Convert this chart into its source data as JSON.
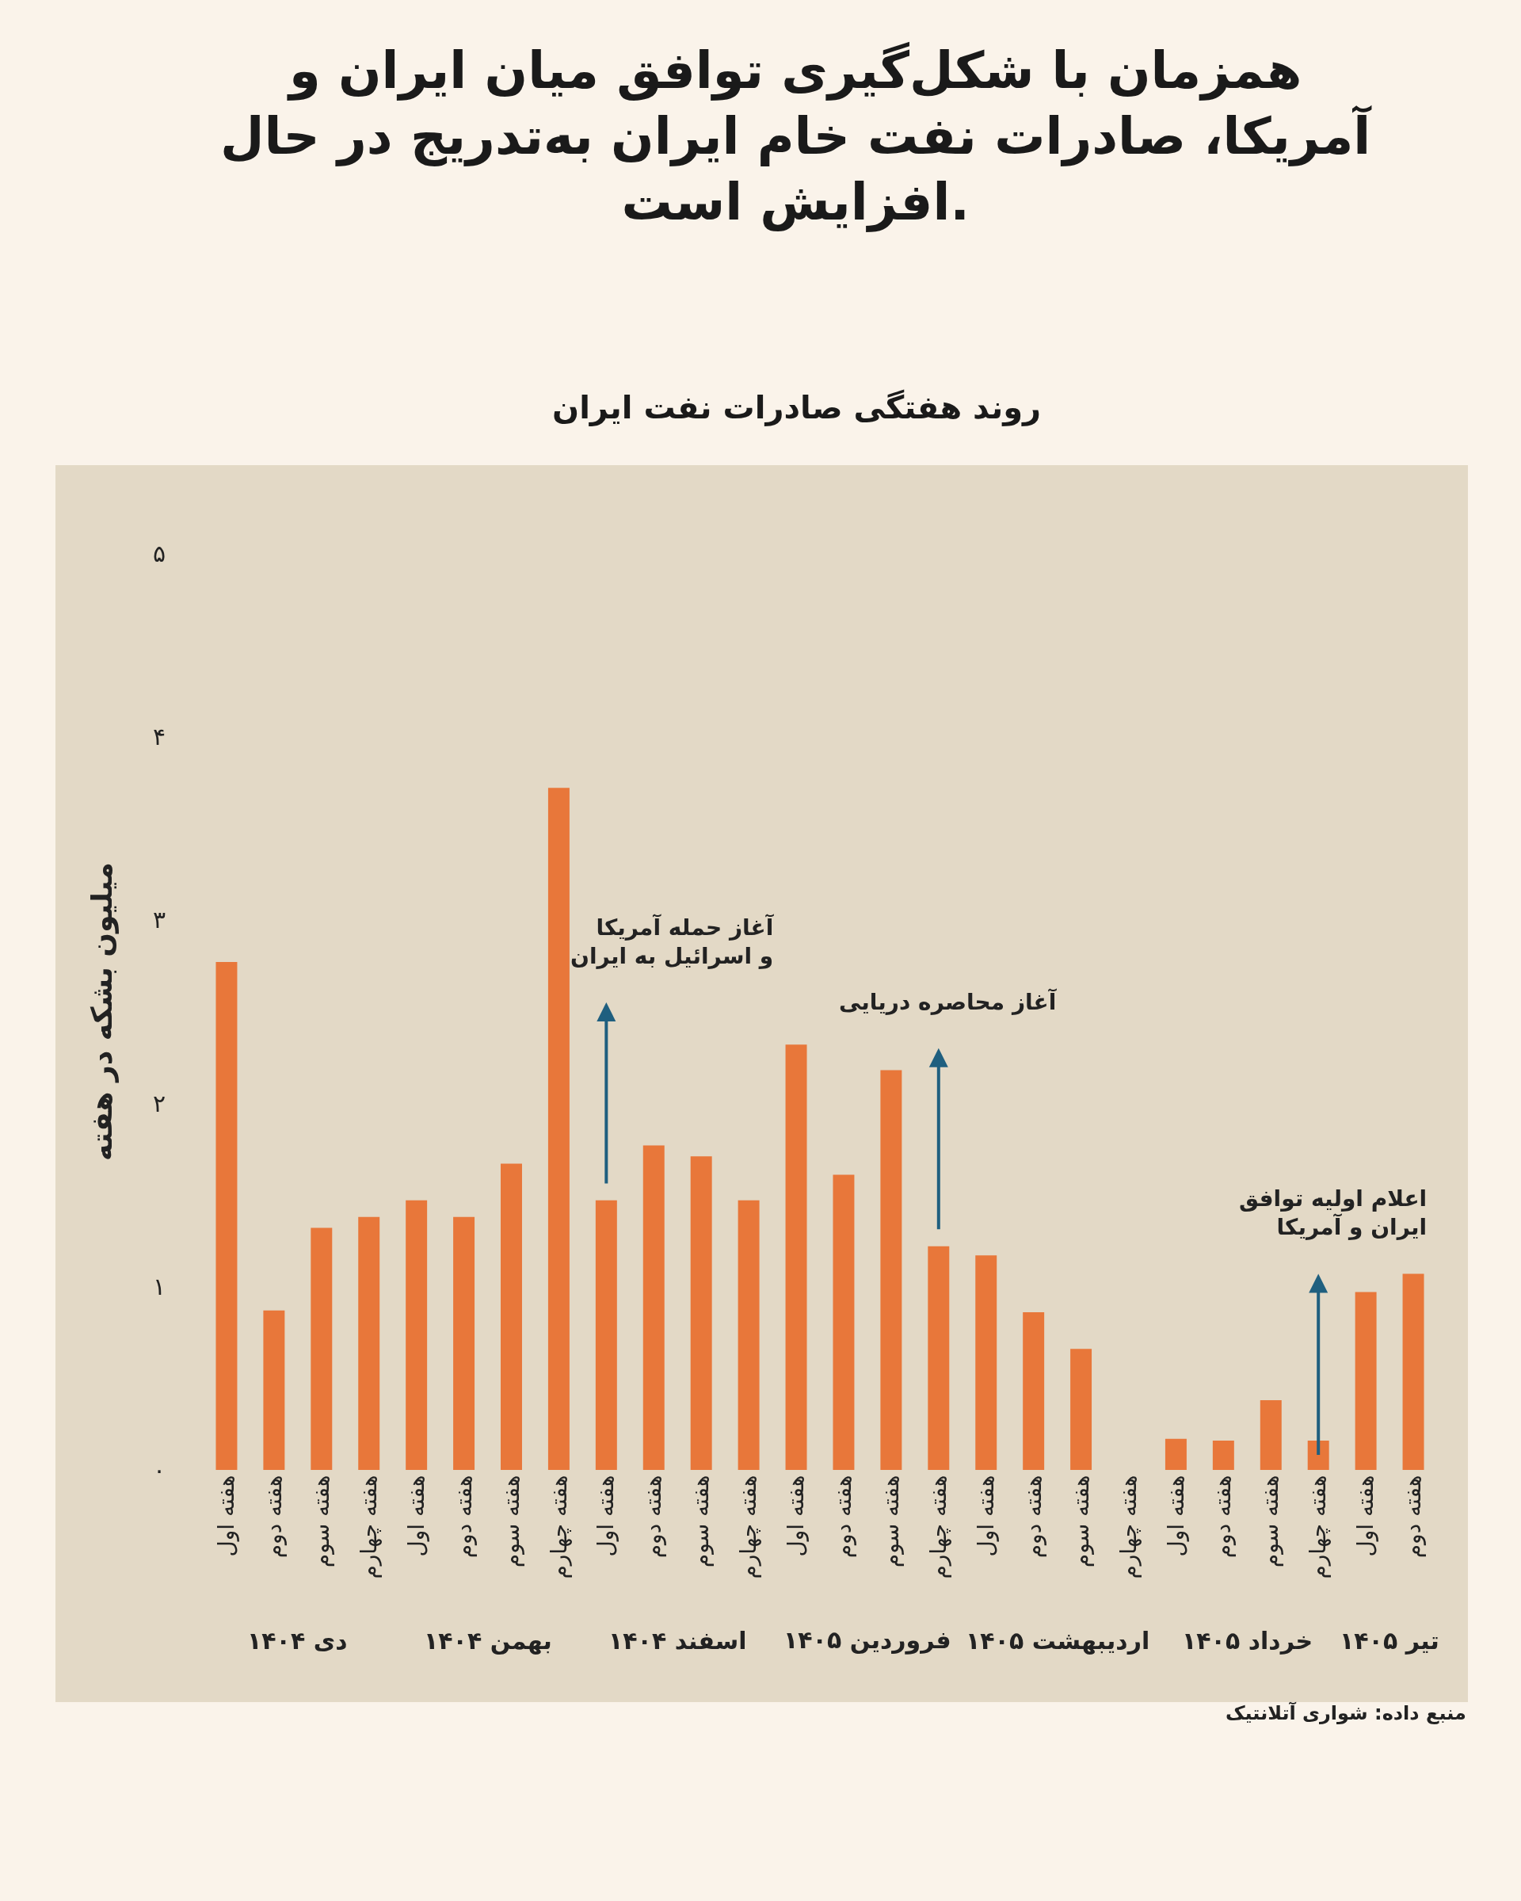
{
  "chart_data": {
    "type": "bar",
    "title": "همزمان با شکل‌گیری توافق میان ایران و آمریکا، صادرات نفت خام ایران به‌تدریج در حال افزایش است.",
    "subtitle": "روند هفتگی صادرات نفت ایران",
    "ylabel": "میلیون بشکه در هفته",
    "categories": [
      "هفته اول",
      "هفته دوم",
      "هفته سوم",
      "هفته چهارم",
      "هفته اول",
      "هفته دوم",
      "هفته سوم",
      "هفته چهارم",
      "هفته اول",
      "هفته دوم",
      "هفته سوم",
      "هفته چهارم",
      "هفته اول",
      "هفته دوم",
      "هفته سوم",
      "هفته چهارم",
      "هفته اول",
      "هفته دوم",
      "هفته سوم",
      "هفته چهارم",
      "هفته اول",
      "هفته دوم",
      "هفته سوم",
      "هفته چهارم",
      "هفته اول",
      "هفته دوم"
    ],
    "values": [
      2.77,
      0.87,
      1.32,
      1.38,
      1.47,
      1.38,
      1.67,
      3.72,
      1.47,
      1.77,
      1.71,
      1.47,
      2.32,
      1.61,
      2.18,
      1.22,
      1.17,
      0.86,
      0.66,
      0,
      0.17,
      0.16,
      0.38,
      0.16,
      0.97,
      1.07
    ],
    "color": "#e8773a",
    "ylim": [
      0,
      5
    ],
    "yticks": [
      {
        "value": 0,
        "label": "۰"
      },
      {
        "value": 1,
        "label": "۱"
      },
      {
        "value": 2,
        "label": "۲"
      },
      {
        "value": 3,
        "label": "۳"
      },
      {
        "value": 4,
        "label": "۴"
      },
      {
        "value": 5,
        "label": "۵"
      }
    ],
    "annotations": [
      "دی ۱۴۰۴",
      "بهمن ۱۴۰۴",
      "اسفند ۱۴۰۴",
      "فروردین ۱۴۰۵",
      "اردیبهشت ۱۴۰۵",
      "خرداد ۱۴۰۵",
      "تیر ۱۴۰۵",
      "آغاز حمله آمریکا\nو اسرائیل به ایران",
      "آغاز محاصره دریایی",
      "اعلام اولیه توافق\nایران و آمریکا",
      "منبع داده: شواری آتلانتیک"
    ]
  }
}
